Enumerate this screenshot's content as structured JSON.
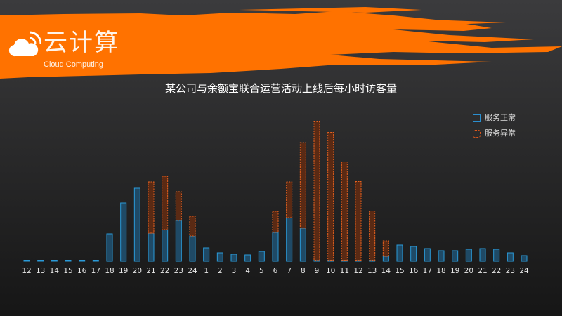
{
  "logo": {
    "title": "云计算",
    "subtitle": "Cloud Computing",
    "icon": "cloud-wifi-icon"
  },
  "chart_data": {
    "type": "bar",
    "stacked": true,
    "title": "某公司与余额宝联合运营活动上线后每小时访客量",
    "xlabel": "",
    "ylabel": "",
    "ylim": [
      0,
      200
    ],
    "grid": false,
    "legend_position": "top-right",
    "categories": [
      "12",
      "13",
      "14",
      "15",
      "16",
      "17",
      "18",
      "19",
      "20",
      "21",
      "22",
      "23",
      "24",
      "1",
      "2",
      "3",
      "4",
      "5",
      "6",
      "7",
      "8",
      "9",
      "10",
      "11",
      "12",
      "13",
      "14",
      "15",
      "16",
      "17",
      "18",
      "19",
      "20",
      "21",
      "22",
      "23",
      "24"
    ],
    "series": [
      {
        "name": "服务正常",
        "color": "#2a8fd0",
        "values": [
          1,
          1,
          1,
          1,
          1,
          1,
          39,
          83,
          104,
          40,
          45,
          58,
          36,
          19,
          12,
          10,
          9,
          14,
          41,
          62,
          47,
          1,
          1,
          1,
          1,
          1,
          7,
          23,
          21,
          18,
          15,
          15,
          17,
          18,
          17,
          12,
          8
        ]
      },
      {
        "name": "服务异常",
        "color": "#e0581c",
        "values": [
          0,
          0,
          0,
          0,
          0,
          0,
          0,
          0,
          0,
          73,
          76,
          41,
          28,
          0,
          0,
          0,
          0,
          0,
          30,
          51,
          122,
          197,
          182,
          140,
          112,
          70,
          22,
          0,
          0,
          0,
          0,
          0,
          0,
          0,
          0,
          0,
          0
        ]
      }
    ]
  }
}
